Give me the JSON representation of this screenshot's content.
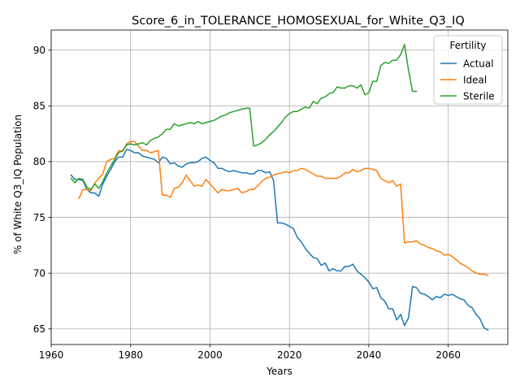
{
  "chart_data": {
    "type": "line",
    "title": "Score_6_in_TOLERANCE_HOMOSEXUAL_for_White_Q3_IQ",
    "xlabel": "Years",
    "ylabel": "% of White Q3_IQ Population",
    "xlim": [
      1960,
      2075
    ],
    "ylim": [
      63.6,
      91.8
    ],
    "xticks": [
      1960,
      1980,
      2000,
      2020,
      2040,
      2060
    ],
    "yticks": [
      65,
      70,
      75,
      80,
      85,
      90
    ],
    "grid": true,
    "legend": {
      "title": "Fertility",
      "placement": "top-right"
    },
    "series": [
      {
        "name": "Actual",
        "color": "#1f77b4",
        "x": [
          1965,
          1966,
          1967,
          1968,
          1969,
          1970,
          1971,
          1972,
          1973,
          1974,
          1975,
          1976,
          1977,
          1978,
          1979,
          1980,
          1981,
          1982,
          1983,
          1984,
          1985,
          1986,
          1987,
          1988,
          1989,
          1990,
          1991,
          1992,
          1993,
          1994,
          1995,
          1996,
          1997,
          1998,
          1999,
          2000,
          2001,
          2002,
          2003,
          2004,
          2005,
          2006,
          2007,
          2008,
          2009,
          2010,
          2011,
          2012,
          2013,
          2014,
          2015,
          2016,
          2017,
          2018,
          2019,
          2020,
          2021,
          2022,
          2023,
          2024,
          2025,
          2026,
          2027,
          2028,
          2029,
          2030,
          2031,
          2032,
          2033,
          2034,
          2035,
          2036,
          2037,
          2038,
          2039,
          2040,
          2041,
          2042,
          2043,
          2044,
          2045,
          2046,
          2047,
          2048,
          2049,
          2050,
          2051,
          2052,
          2053,
          2054,
          2055,
          2056,
          2057,
          2058,
          2059,
          2060,
          2061,
          2062,
          2063,
          2064,
          2065,
          2066,
          2067,
          2068,
          2069,
          2070
        ],
        "values": [
          78.8,
          78.4,
          78.4,
          78.3,
          77.5,
          77.2,
          77.2,
          76.9,
          78.0,
          78.7,
          79.3,
          80.0,
          80.4,
          80.4,
          81.1,
          81.0,
          80.8,
          80.8,
          80.5,
          80.4,
          80.3,
          80.2,
          79.9,
          80.4,
          80.3,
          79.8,
          79.9,
          79.6,
          79.5,
          79.8,
          79.9,
          79.9,
          80.0,
          80.3,
          80.4,
          80.1,
          79.9,
          79.4,
          79.4,
          79.2,
          79.1,
          79.2,
          79.1,
          79.0,
          79.0,
          78.9,
          78.9,
          79.2,
          79.2,
          79.0,
          79.1,
          78.3,
          74.5,
          74.5,
          74.4,
          74.2,
          74.0,
          73.2,
          72.8,
          72.2,
          71.8,
          71.4,
          71.3,
          70.7,
          70.9,
          70.2,
          70.4,
          70.2,
          70.2,
          70.6,
          70.6,
          70.8,
          70.2,
          69.9,
          69.6,
          69.2,
          68.6,
          68.7,
          67.8,
          67.5,
          66.8,
          66.8,
          65.8,
          66.3,
          65.3,
          66.0,
          68.8,
          68.7,
          68.2,
          68.1,
          67.9,
          67.6,
          67.9,
          67.8,
          68.1,
          68.0,
          68.1,
          67.9,
          67.7,
          67.6,
          67.1,
          66.9,
          66.3,
          65.9,
          65.1,
          64.9
        ]
      },
      {
        "name": "Ideal",
        "color": "#ff7f0e",
        "x": [
          1967,
          1968,
          1969,
          1970,
          1971,
          1972,
          1973,
          1974,
          1975,
          1976,
          1977,
          1978,
          1979,
          1980,
          1981,
          1982,
          1983,
          1984,
          1985,
          1986,
          1987,
          1988,
          1989,
          1990,
          1991,
          1992,
          1993,
          1994,
          1995,
          1996,
          1997,
          1998,
          1999,
          2000,
          2001,
          2002,
          2003,
          2004,
          2005,
          2006,
          2007,
          2008,
          2009,
          2010,
          2011,
          2012,
          2013,
          2014,
          2015,
          2016,
          2017,
          2018,
          2019,
          2020,
          2021,
          2022,
          2023,
          2024,
          2025,
          2026,
          2027,
          2028,
          2029,
          2030,
          2031,
          2032,
          2033,
          2034,
          2035,
          2036,
          2037,
          2038,
          2039,
          2040,
          2041,
          2042,
          2043,
          2044,
          2045,
          2046,
          2047,
          2048,
          2049,
          2050,
          2051,
          2052,
          2053,
          2054,
          2055,
          2056,
          2057,
          2058,
          2059,
          2060,
          2061,
          2062,
          2063,
          2064,
          2065,
          2066,
          2067,
          2068,
          2069,
          2070
        ],
        "values": [
          76.7,
          77.5,
          77.5,
          77.4,
          78.1,
          78.5,
          78.9,
          80.0,
          80.2,
          80.3,
          81.0,
          80.9,
          81.6,
          81.8,
          81.8,
          81.4,
          81.0,
          81.0,
          80.8,
          80.9,
          81.0,
          77.0,
          77.0,
          76.8,
          77.6,
          77.7,
          78.1,
          78.8,
          78.3,
          77.8,
          77.9,
          77.8,
          78.4,
          78.0,
          77.6,
          77.2,
          77.5,
          77.4,
          77.4,
          77.5,
          77.6,
          77.2,
          77.3,
          77.5,
          77.5,
          77.8,
          78.2,
          78.5,
          78.6,
          78.8,
          78.9,
          79.0,
          79.1,
          79.0,
          79.2,
          79.2,
          79.4,
          79.3,
          79.1,
          78.9,
          78.7,
          78.7,
          78.5,
          78.5,
          78.5,
          78.5,
          78.7,
          79.0,
          79.0,
          79.3,
          79.1,
          79.2,
          79.4,
          79.4,
          79.3,
          79.2,
          78.5,
          78.3,
          78.1,
          78.3,
          77.8,
          78.0,
          72.7,
          72.8,
          72.8,
          72.9,
          72.6,
          72.5,
          72.3,
          72.2,
          72.0,
          71.9,
          71.6,
          71.7,
          71.5,
          71.2,
          70.9,
          70.7,
          70.5,
          70.2,
          70.0,
          69.9,
          69.9,
          69.8
        ]
      },
      {
        "name": "Sterile",
        "color": "#2ca02c",
        "x": [
          1965,
          1966,
          1967,
          1968,
          1969,
          1970,
          1971,
          1972,
          1973,
          1974,
          1975,
          1976,
          1977,
          1978,
          1979,
          1980,
          1981,
          1982,
          1983,
          1984,
          1985,
          1986,
          1987,
          1988,
          1989,
          1990,
          1991,
          1992,
          1993,
          1994,
          1995,
          1996,
          1997,
          1998,
          1999,
          2000,
          2001,
          2002,
          2003,
          2004,
          2005,
          2006,
          2007,
          2008,
          2009,
          2010,
          2011,
          2012,
          2013,
          2014,
          2015,
          2016,
          2017,
          2018,
          2019,
          2020,
          2021,
          2022,
          2023,
          2024,
          2025,
          2026,
          2027,
          2028,
          2029,
          2030,
          2031,
          2032,
          2033,
          2034,
          2035,
          2036,
          2037,
          2038,
          2039,
          2040,
          2041,
          2042,
          2043,
          2044,
          2045,
          2046,
          2047,
          2048,
          2049,
          2050,
          2051,
          2052
        ],
        "values": [
          78.5,
          78.1,
          78.5,
          78.4,
          77.7,
          77.5,
          78.0,
          77.6,
          78.2,
          79.0,
          79.6,
          80.2,
          80.8,
          81.0,
          81.5,
          81.6,
          81.5,
          81.6,
          81.7,
          81.5,
          81.9,
          82.1,
          82.2,
          82.5,
          82.9,
          82.9,
          83.4,
          83.2,
          83.3,
          83.4,
          83.5,
          83.4,
          83.6,
          83.4,
          83.5,
          83.6,
          83.7,
          83.9,
          84.1,
          84.2,
          84.4,
          84.5,
          84.6,
          84.7,
          84.8,
          84.8,
          81.4,
          81.5,
          81.7,
          82.0,
          82.4,
          82.7,
          83.1,
          83.5,
          84.0,
          84.3,
          84.5,
          84.5,
          84.7,
          84.9,
          84.8,
          85.4,
          85.2,
          85.7,
          85.8,
          86.1,
          86.2,
          86.7,
          86.6,
          86.6,
          86.8,
          86.8,
          86.6,
          86.9,
          86.0,
          86.2,
          87.2,
          87.2,
          88.6,
          88.9,
          88.8,
          89.1,
          89.1,
          89.6,
          90.5,
          88.2,
          86.3,
          86.3
        ]
      }
    ]
  }
}
